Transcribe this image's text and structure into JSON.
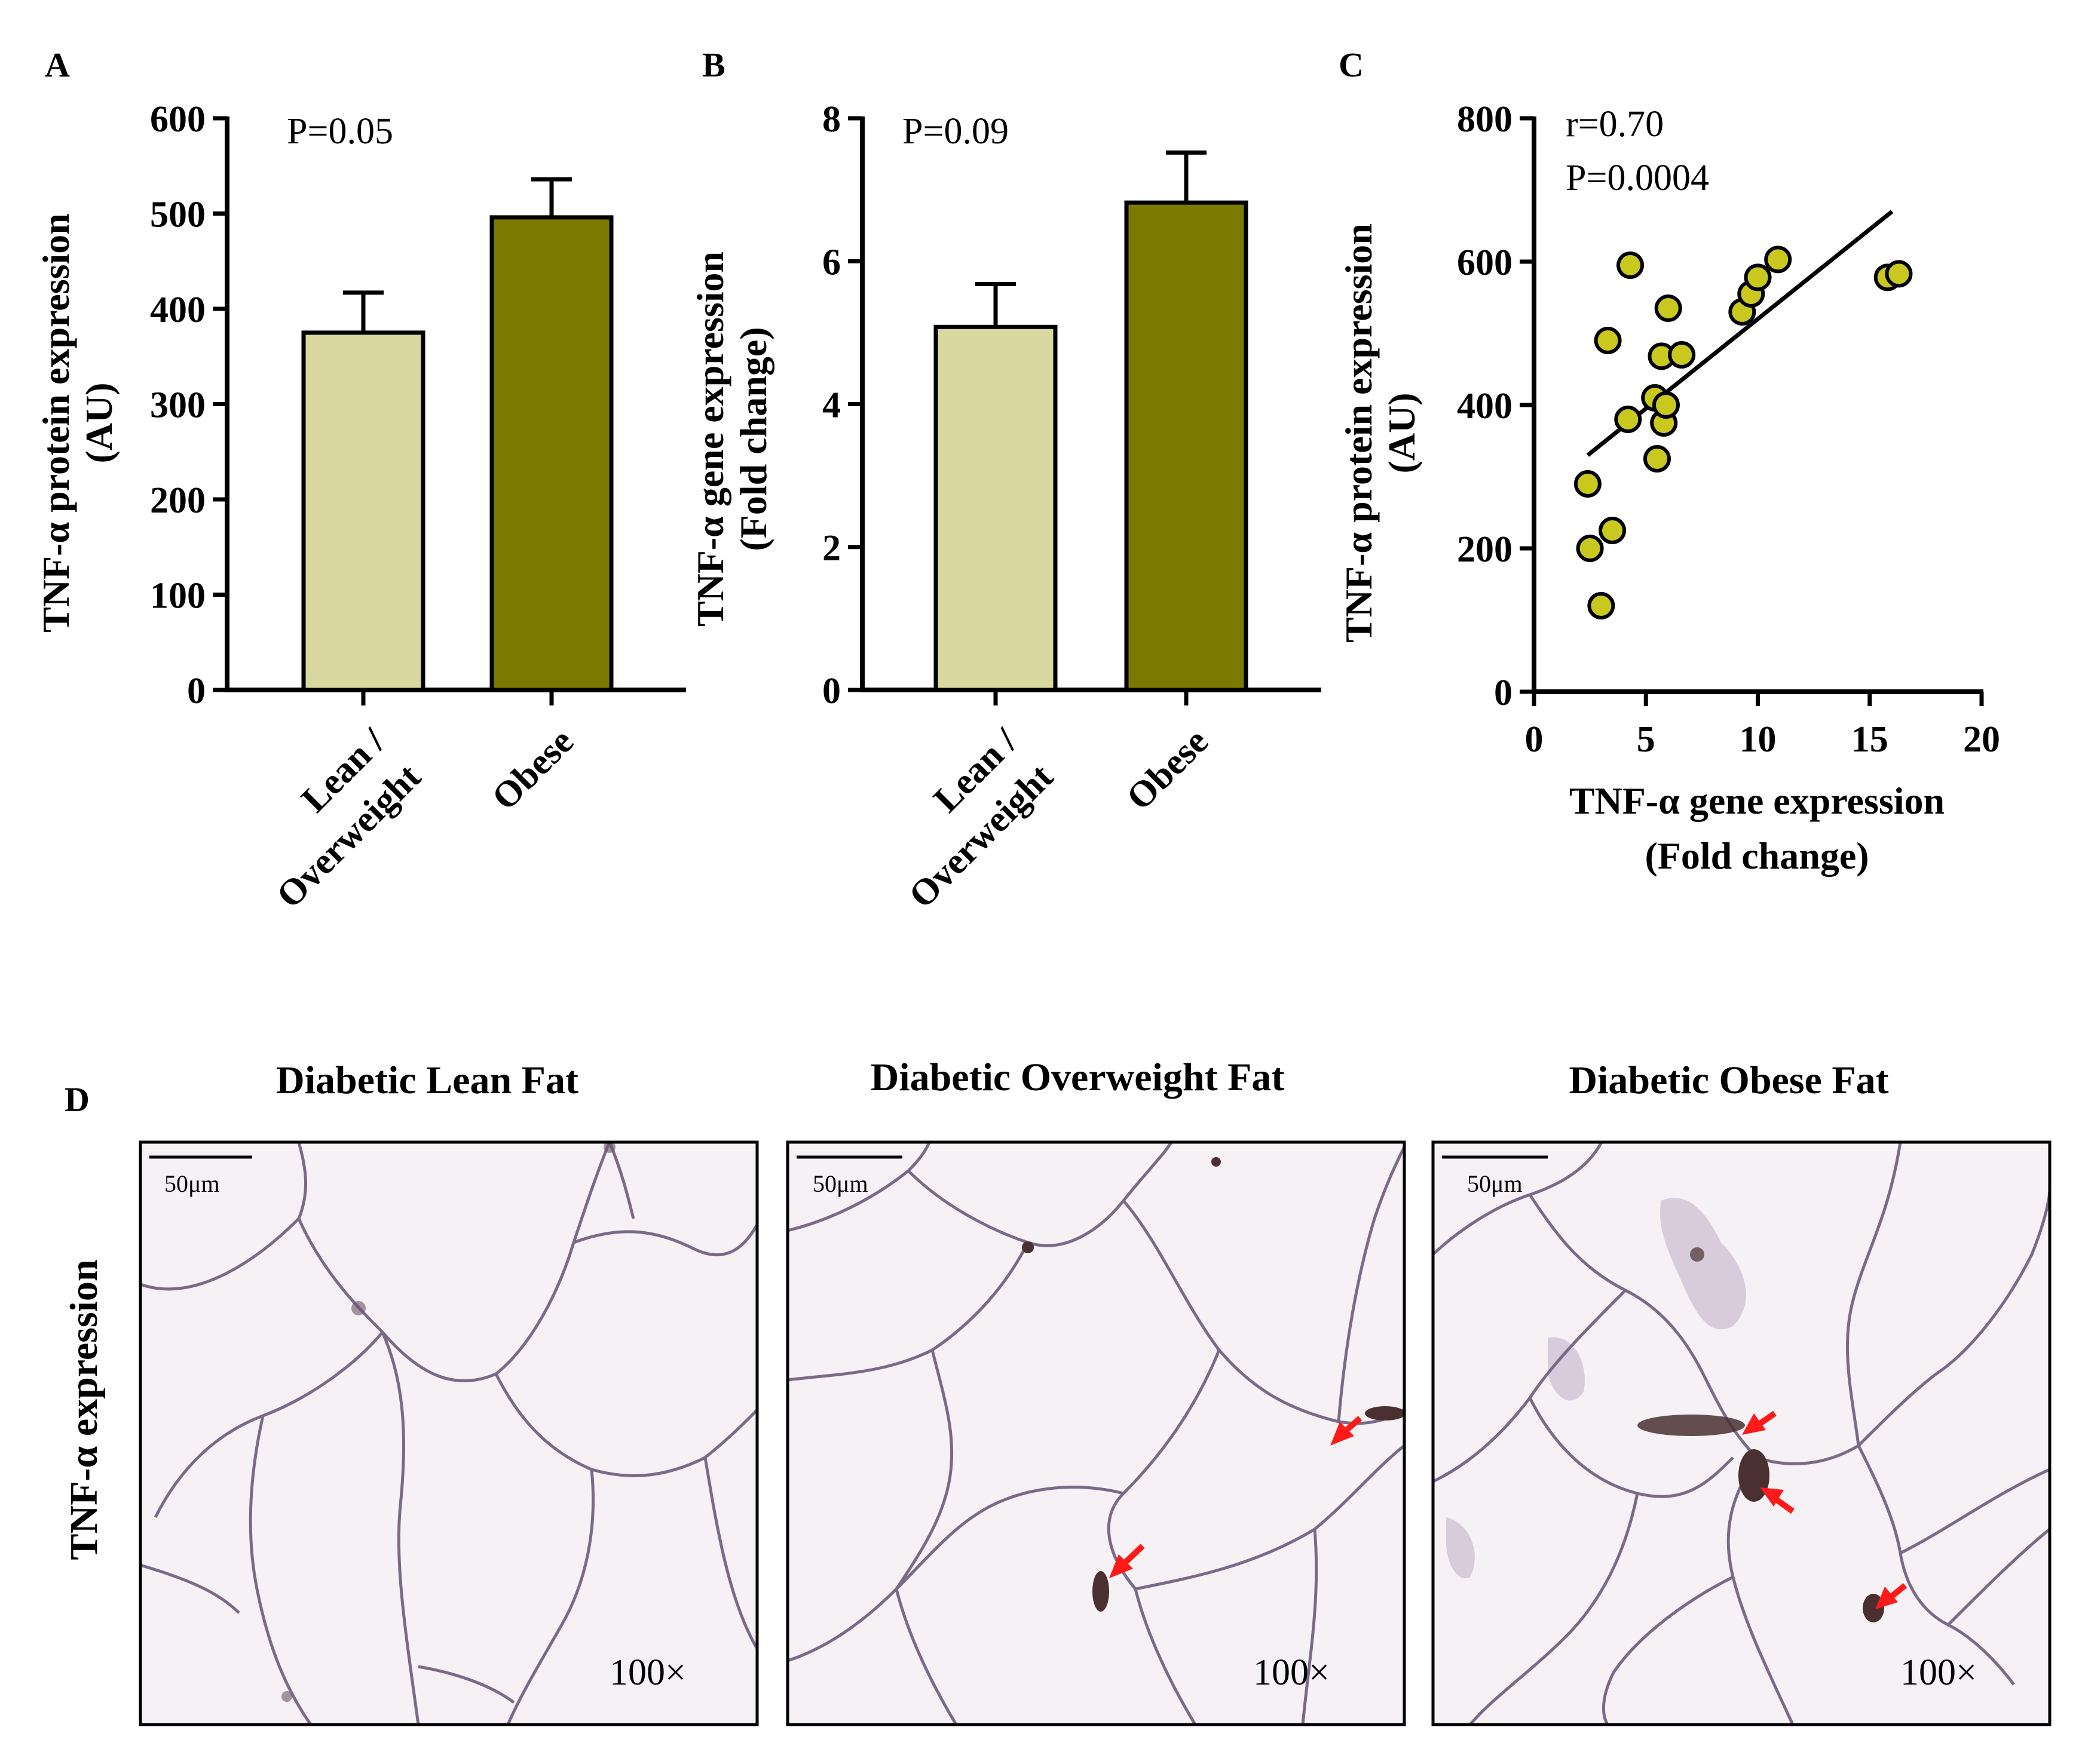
{
  "colors": {
    "lean_bar": "#d8d8a0",
    "obese_bar": "#7a7a00",
    "scatter_point": "#c8c81e",
    "axis": "#000000",
    "tissue_bg": "#f5f0f3",
    "membrane": "#6e5a78",
    "arrow": "#ff1a1a"
  },
  "panels": {
    "a": {
      "letter": "A"
    },
    "b": {
      "letter": "B"
    },
    "c": {
      "letter": "C"
    },
    "d": {
      "letter": "D",
      "row_label": "TNF-α expression",
      "images": [
        {
          "title": "Diabetic Lean Fat",
          "scale_label": "50μm",
          "magnification": "100×",
          "arrow_count": 0
        },
        {
          "title": "Diabetic Overweight Fat",
          "scale_label": "50μm",
          "magnification": "100×",
          "arrow_count": 2
        },
        {
          "title": "Diabetic Obese Fat",
          "scale_label": "50μm",
          "magnification": "100×",
          "arrow_count": 3
        }
      ]
    }
  },
  "chart_data": [
    {
      "id": "A",
      "type": "bar",
      "categories": [
        "Lean /\nOverweight",
        "Obese"
      ],
      "category_lines": [
        [
          "Lean /",
          "Overweight"
        ],
        [
          "Obese"
        ]
      ],
      "values": [
        375,
        496
      ],
      "errors": [
        42,
        40
      ],
      "ylabel": [
        "TNF-α protein expression",
        "(AU)"
      ],
      "ylim": [
        0,
        600
      ],
      "yticks": [
        0,
        100,
        200,
        300,
        400,
        500,
        600
      ],
      "annotation": "P=0.05"
    },
    {
      "id": "B",
      "type": "bar",
      "categories": [
        "Lean /\nOverweight",
        "Obese"
      ],
      "category_lines": [
        [
          "Lean /",
          "Overweight"
        ],
        [
          "Obese"
        ]
      ],
      "values": [
        5.08,
        6.82
      ],
      "errors": [
        0.6,
        0.7
      ],
      "ylabel": [
        "TNF-α gene expression",
        "(Fold change)"
      ],
      "ylim": [
        0,
        8
      ],
      "yticks": [
        0,
        2,
        4,
        6,
        8
      ],
      "annotation": "P=0.09"
    },
    {
      "id": "C",
      "type": "scatter",
      "xlabel": [
        "TNF-α gene expression",
        "(Fold change)"
      ],
      "ylabel": [
        "TNF-α protein expression",
        "(AU)"
      ],
      "xlim": [
        0,
        20
      ],
      "ylim": [
        0,
        800
      ],
      "xticks": [
        0,
        5,
        10,
        15,
        20
      ],
      "yticks": [
        0,
        200,
        400,
        600,
        800
      ],
      "annotations": [
        "r=0.70",
        "P=0.0004"
      ],
      "points": [
        {
          "x": 2.4,
          "y": 290
        },
        {
          "x": 2.5,
          "y": 200
        },
        {
          "x": 3.0,
          "y": 120
        },
        {
          "x": 3.3,
          "y": 490
        },
        {
          "x": 3.5,
          "y": 225
        },
        {
          "x": 4.2,
          "y": 380
        },
        {
          "x": 4.3,
          "y": 595
        },
        {
          "x": 5.4,
          "y": 410
        },
        {
          "x": 5.5,
          "y": 325
        },
        {
          "x": 5.7,
          "y": 468
        },
        {
          "x": 5.8,
          "y": 375
        },
        {
          "x": 5.9,
          "y": 400
        },
        {
          "x": 6.0,
          "y": 535
        },
        {
          "x": 6.6,
          "y": 470
        },
        {
          "x": 9.3,
          "y": 530
        },
        {
          "x": 9.7,
          "y": 555
        },
        {
          "x": 10.0,
          "y": 578
        },
        {
          "x": 10.9,
          "y": 603
        },
        {
          "x": 15.8,
          "y": 578
        },
        {
          "x": 16.3,
          "y": 583
        }
      ],
      "fit_line": {
        "x": [
          2.4,
          16.0
        ],
        "y": [
          330,
          670
        ]
      }
    }
  ]
}
